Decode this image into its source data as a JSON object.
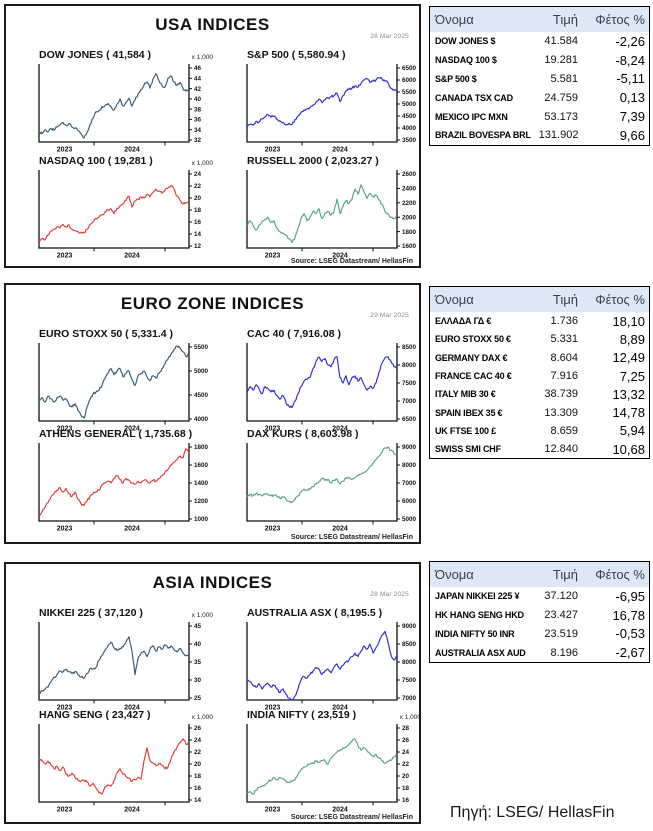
{
  "page": {
    "source_note": "Πηγή: LSEG/ HellasFin"
  },
  "panels": [
    {
      "title": "USA INDICES",
      "date": "28 Mar 2025",
      "source": "Source: LSEG Datastream/ HellasFin",
      "charts": [
        0,
        1,
        2,
        3
      ]
    },
    {
      "title": "EURO ZONE INDICES",
      "date": "29 Mar 2025",
      "source": "Source: LSEG Datastream/ HellasFin",
      "charts": [
        4,
        5,
        6,
        7
      ]
    },
    {
      "title": "ASIA INDICES",
      "date": "28 Mar 2025",
      "source": "Source: LSEG Datastream/ HellasFin",
      "charts": [
        8,
        9,
        10,
        11
      ]
    }
  ],
  "tables": [
    {
      "headers": [
        "Όνομα",
        "Τιμή",
        "Φέτος %"
      ],
      "rows": [
        {
          "name": "DOW JONES $",
          "value": "41.584",
          "ytd": "-2,26"
        },
        {
          "name": "NASDAQ 100 $",
          "value": "19.281",
          "ytd": "-8,24"
        },
        {
          "name": "S&P 500 $",
          "value": "5.581",
          "ytd": "-5,11"
        },
        {
          "name": "CANADA TSX CAD",
          "value": "24.759",
          "ytd": "0,13"
        },
        {
          "name": "MEXICO IPC MXN",
          "value": "53.173",
          "ytd": "7,39"
        },
        {
          "name": "BRAZIL BOVESPA BRL",
          "value": "131.902",
          "ytd": "9,66"
        }
      ]
    },
    {
      "headers": [
        "Όνομα",
        "Τιμή",
        "Φέτος %"
      ],
      "rows": [
        {
          "name": "ΕΛΛΑΔΑ ΓΔ €",
          "value": "1.736",
          "ytd": "18,10"
        },
        {
          "name": "EURO STOXX 50 €",
          "value": "5.331",
          "ytd": "8,89"
        },
        {
          "name": "GERMANY DAX €",
          "value": "8.604",
          "ytd": "12,49"
        },
        {
          "name": "FRANCE CAC 40 €",
          "value": "7.916",
          "ytd": "7,25"
        },
        {
          "name": "ITALY MIB 30 €",
          "value": "38.739",
          "ytd": "13,32"
        },
        {
          "name": "SPAIN IBEX 35 €",
          "value": "13.309",
          "ytd": "14,78"
        },
        {
          "name": "UK FTSE 100 £",
          "value": "8.659",
          "ytd": "5,94"
        },
        {
          "name": "SWISS SMI CHF",
          "value": "12.840",
          "ytd": "10,68"
        }
      ]
    },
    {
      "headers": [
        "Όνομα",
        "Τιμή",
        "Φέτος %"
      ],
      "rows": [
        {
          "name": "JAPAN NIKKEI 225 ¥",
          "value": "37.120",
          "ytd": "-6,95"
        },
        {
          "name": "HK HANG SENG HKD",
          "value": "23.427",
          "ytd": "16,78"
        },
        {
          "name": "INDIA NIFTY 50 INR",
          "value": "23.519",
          "ytd": "-0,53"
        },
        {
          "name": "AUSTRALIA ASX AUD",
          "value": "8.196",
          "ytd": "-2,67"
        }
      ]
    }
  ],
  "chart_data": [
    {
      "id": "dow-jones",
      "type": "line",
      "title": "DOW JONES ( 41,584 )",
      "scale_label": "x 1,000",
      "color": "#355a74",
      "ylim": [
        32,
        46
      ],
      "yticks": [
        46,
        44,
        42,
        40,
        38,
        36,
        34,
        32
      ],
      "x_labels": [
        "2023",
        "2024"
      ],
      "values": [
        33.6,
        33.2,
        34.0,
        33.6,
        34.2,
        33.9,
        34.5,
        35.0,
        35.4,
        34.9,
        35.2,
        34.5,
        34.3,
        33.8,
        33.2,
        32.4,
        33.5,
        35.0,
        36.2,
        37.5,
        37.7,
        38.5,
        38.7,
        39.1,
        38.5,
        37.8,
        39.0,
        40.0,
        38.6,
        39.3,
        40.1,
        38.6,
        39.8,
        40.9,
        41.8,
        42.7,
        43.3,
        42.1,
        43.9,
        44.9,
        43.5,
        42.6,
        42.3,
        44.0,
        44.5,
        43.3,
        42.6,
        43.2,
        42.0,
        41.5,
        41.6
      ]
    },
    {
      "id": "sp-500",
      "type": "line",
      "title": "S&P 500  ( 5,580.94 )",
      "scale_label": "",
      "color": "#2d2dcc",
      "ylim": [
        3500,
        6500
      ],
      "yticks": [
        6500,
        6000,
        5500,
        5000,
        4500,
        4000,
        3500
      ],
      "x_labels": [
        "2023",
        "2024"
      ],
      "values": [
        4080,
        4150,
        4120,
        4280,
        4250,
        4380,
        4460,
        4550,
        4450,
        4500,
        4350,
        4300,
        4230,
        4120,
        4200,
        4150,
        4350,
        4500,
        4650,
        4750,
        4780,
        4850,
        4950,
        5080,
        5200,
        5050,
        5180,
        5250,
        5300,
        5350,
        5450,
        5100,
        5350,
        5550,
        5600,
        5650,
        5750,
        5700,
        5850,
        6000,
        6050,
        5900,
        5950,
        6000,
        6090,
        6050,
        5950,
        5880,
        5650,
        5600,
        5580
      ]
    },
    {
      "id": "nasdaq-100",
      "type": "line",
      "title": "NASDAQ 100 ( 19,281 )",
      "scale_label": "x 1,000",
      "color": "#e03c3c",
      "ylim": [
        12,
        24
      ],
      "yticks": [
        24,
        22,
        20,
        18,
        16,
        14,
        12
      ],
      "x_labels": [
        "2023",
        "2024"
      ],
      "values": [
        12.9,
        13.2,
        13.0,
        13.8,
        14.5,
        14.8,
        15.2,
        15.0,
        15.6,
        15.2,
        15.5,
        14.8,
        14.6,
        14.4,
        14.3,
        14.2,
        14.8,
        15.6,
        16.0,
        16.6,
        16.8,
        17.2,
        17.7,
        18.0,
        18.2,
        17.4,
        18.3,
        18.7,
        19.0,
        19.6,
        20.3,
        18.5,
        19.5,
        19.8,
        20.2,
        20.0,
        20.6,
        20.2,
        20.9,
        21.5,
        21.2,
        20.8,
        21.3,
        21.7,
        22.1,
        21.5,
        20.3,
        19.6,
        19.0,
        19.2,
        19.3
      ]
    },
    {
      "id": "russell-2000",
      "type": "line",
      "title": "RUSSELL 2000  ( 2,023.27 )",
      "scale_label": "",
      "color": "#58a185",
      "ylim": [
        1600,
        2600
      ],
      "yticks": [
        2600,
        2400,
        2200,
        2000,
        1800,
        1600
      ],
      "x_labels": [
        "2023",
        "2024"
      ],
      "values": [
        1900,
        1950,
        1890,
        1820,
        1890,
        1940,
        1970,
        2000,
        1930,
        1950,
        1850,
        1800,
        1780,
        1750,
        1700,
        1650,
        1720,
        1850,
        1980,
        2050,
        1950,
        2000,
        2080,
        2050,
        2120,
        1980,
        2060,
        2080,
        2030,
        2080,
        2250,
        2050,
        2150,
        2230,
        2190,
        2250,
        2390,
        2320,
        2450,
        2350,
        2260,
        2330,
        2280,
        2300,
        2240,
        2180,
        2080,
        2040,
        2000,
        1980,
        2020
      ]
    },
    {
      "id": "euro-stoxx-50",
      "type": "line",
      "title": "EURO STOXX 50 ( 5,331.4 )",
      "scale_label": "",
      "color": "#355a74",
      "ylim": [
        4000,
        5500
      ],
      "yticks": [
        5500,
        5000,
        4500,
        4000
      ],
      "x_labels": [
        "2023",
        "2024"
      ],
      "values": [
        4380,
        4450,
        4350,
        4480,
        4420,
        4350,
        4440,
        4480,
        4390,
        4420,
        4300,
        4250,
        4320,
        4180,
        4080,
        4020,
        4250,
        4400,
        4520,
        4560,
        4600,
        4700,
        4850,
        4950,
        5050,
        4920,
        5000,
        5050,
        4880,
        4950,
        5000,
        4820,
        4700,
        4900,
        4950,
        5000,
        4880,
        4800,
        4900,
        4850,
        4950,
        5050,
        5150,
        5250,
        5350,
        5450,
        5520,
        5480,
        5400,
        5300,
        5330
      ]
    },
    {
      "id": "cac-40",
      "type": "line",
      "title": "CAC 40  ( 7,916.08 )",
      "scale_label": "",
      "color": "#2d2dcc",
      "ylim": [
        6500,
        8500
      ],
      "yticks": [
        8500,
        8000,
        7500,
        7000,
        6500
      ],
      "x_labels": [
        "2023",
        "2024"
      ],
      "values": [
        7250,
        7400,
        7300,
        7450,
        7350,
        7200,
        7400,
        7350,
        7250,
        7300,
        7150,
        7050,
        7150,
        6950,
        6850,
        6820,
        7000,
        7200,
        7400,
        7550,
        7600,
        7650,
        7900,
        8100,
        8220,
        8100,
        8180,
        8000,
        7950,
        8150,
        8230,
        7650,
        7500,
        7700,
        7450,
        7650,
        7700,
        7550,
        7650,
        7450,
        7300,
        7400,
        7350,
        7500,
        7800,
        8050,
        8200,
        8230,
        8100,
        7950,
        7920
      ]
    },
    {
      "id": "athens-general",
      "type": "line",
      "title": "ATHENS GENERAL ( 1,735.68 )",
      "scale_label": "",
      "color": "#e03c3c",
      "ylim": [
        1000,
        1800
      ],
      "yticks": [
        1800,
        1600,
        1400,
        1200,
        1000
      ],
      "x_labels": [
        "2023",
        "2024"
      ],
      "values": [
        1040,
        1080,
        1130,
        1180,
        1250,
        1280,
        1320,
        1350,
        1300,
        1340,
        1280,
        1250,
        1300,
        1220,
        1170,
        1150,
        1200,
        1250,
        1280,
        1300,
        1320,
        1380,
        1400,
        1420,
        1400,
        1450,
        1480,
        1440,
        1400,
        1450,
        1430,
        1400,
        1390,
        1420,
        1400,
        1430,
        1420,
        1400,
        1430,
        1420,
        1450,
        1480,
        1520,
        1550,
        1600,
        1630,
        1660,
        1700,
        1680,
        1780,
        1735
      ]
    },
    {
      "id": "dax-kurs",
      "type": "line",
      "title": "DAX KURS  ( 8,603.98 )",
      "scale_label": "",
      "color": "#58a185",
      "ylim": [
        5000,
        9000
      ],
      "yticks": [
        9000,
        8000,
        7000,
        6000,
        5000
      ],
      "x_labels": [
        "2023",
        "2024"
      ],
      "values": [
        6250,
        6350,
        6300,
        6400,
        6350,
        6280,
        6380,
        6350,
        6280,
        6320,
        6250,
        6150,
        6220,
        6080,
        5980,
        5950,
        6100,
        6300,
        6500,
        6650,
        6600,
        6650,
        6800,
        6950,
        7100,
        7250,
        7150,
        7200,
        7000,
        7150,
        7200,
        6950,
        7100,
        7250,
        7300,
        7200,
        7300,
        7400,
        7500,
        7600,
        7700,
        7900,
        8100,
        8300,
        8500,
        8700,
        8950,
        9000,
        8800,
        8650,
        8600
      ]
    },
    {
      "id": "nikkei-225",
      "type": "line",
      "title": "NIKKEI 225 ( 37,120 )",
      "scale_label": "x 1,000",
      "color": "#355a74",
      "ylim": [
        25,
        45
      ],
      "yticks": [
        45,
        40,
        35,
        30,
        25
      ],
      "x_labels": [
        "2023",
        "2024"
      ],
      "values": [
        26.2,
        27.0,
        27.4,
        28.0,
        29.5,
        30.8,
        31.5,
        32.5,
        32.2,
        33.0,
        32.3,
        31.8,
        32.4,
        31.5,
        30.8,
        30.5,
        31.8,
        33.2,
        33.0,
        33.5,
        35.5,
        36.8,
        38.2,
        39.5,
        40.5,
        39.0,
        38.2,
        38.8,
        39.2,
        40.5,
        42.0,
        38.0,
        31.5,
        36.0,
        37.5,
        38.0,
        36.5,
        38.5,
        39.5,
        38.0,
        39.2,
        38.5,
        39.8,
        38.8,
        39.5,
        38.5,
        37.8,
        38.8,
        37.5,
        36.8,
        37.1
      ]
    },
    {
      "id": "australia-asx",
      "type": "line",
      "title": "AUSTRALIA ASX  ( 8,195.5 )",
      "scale_label": "",
      "color": "#2d2dcc",
      "ylim": [
        7000,
        9000
      ],
      "yticks": [
        9000,
        8500,
        8000,
        7500,
        7000
      ],
      "x_labels": [
        "2023",
        "2024"
      ],
      "values": [
        7500,
        7450,
        7350,
        7300,
        7400,
        7250,
        7350,
        7400,
        7300,
        7350,
        7250,
        7150,
        7250,
        7100,
        7000,
        6950,
        7050,
        7250,
        7500,
        7600,
        7550,
        7650,
        7750,
        7850,
        7800,
        7650,
        7750,
        7800,
        7700,
        7850,
        7950,
        7800,
        7900,
        8000,
        8050,
        8150,
        8250,
        8150,
        8300,
        8450,
        8350,
        8500,
        8250,
        8400,
        8550,
        8750,
        8850,
        8550,
        8200,
        8050,
        8200
      ]
    },
    {
      "id": "hang-seng",
      "type": "line",
      "title": "HANG SENG ( 23,427 )",
      "scale_label": "x 1,000",
      "color": "#e03c3c",
      "ylim": [
        14,
        26
      ],
      "yticks": [
        26,
        24,
        22,
        20,
        18,
        16,
        14
      ],
      "x_labels": [
        "2023",
        "2024"
      ],
      "values": [
        21.0,
        20.5,
        20.0,
        20.5,
        19.8,
        19.2,
        19.6,
        18.9,
        19.5,
        18.3,
        18.0,
        18.5,
        17.8,
        17.3,
        17.1,
        17.3,
        17.0,
        16.3,
        16.8,
        16.0,
        15.2,
        15.0,
        16.2,
        16.5,
        16.3,
        17.2,
        18.5,
        19.2,
        18.3,
        17.9,
        17.7,
        17.1,
        17.4,
        17.8,
        17.5,
        20.5,
        22.7,
        20.6,
        20.2,
        19.7,
        20.1,
        19.8,
        19.2,
        19.5,
        20.8,
        22.0,
        22.8,
        23.5,
        24.2,
        23.3,
        23.4
      ]
    },
    {
      "id": "india-nifty",
      "type": "line",
      "title": "INDIA NIFTY  ( 23,519 )",
      "scale_label": "x 1,000",
      "color": "#58a185",
      "ylim": [
        16,
        28
      ],
      "yticks": [
        28,
        26,
        24,
        22,
        20,
        18,
        16
      ],
      "x_labels": [
        "2023",
        "2024"
      ],
      "values": [
        17.1,
        17.4,
        17.0,
        17.6,
        18.1,
        18.3,
        18.5,
        19.0,
        19.3,
        19.7,
        19.4,
        19.7,
        19.5,
        19.2,
        18.9,
        19.1,
        19.4,
        20.3,
        21.0,
        21.5,
        21.7,
        22.0,
        22.2,
        22.4,
        22.3,
        22.6,
        22.5,
        22.0,
        23.0,
        23.5,
        24.0,
        24.3,
        24.7,
        24.8,
        25.3,
        25.8,
        26.2,
        25.0,
        24.3,
        24.7,
        24.2,
        23.7,
        23.2,
        23.6,
        23.0,
        22.5,
        22.1,
        22.4,
        22.6,
        23.2,
        23.5
      ]
    }
  ]
}
